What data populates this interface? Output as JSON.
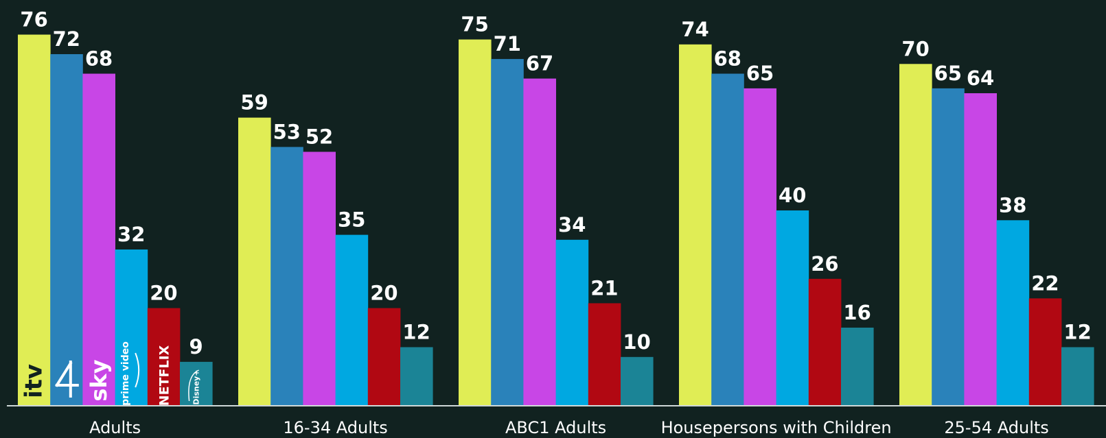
{
  "colors": {
    "background": "#112220",
    "baseline": "#cfd8d8",
    "text": "#ffffff"
  },
  "chart_data": {
    "type": "bar",
    "title": "",
    "xlabel": "",
    "ylabel": "",
    "ylim": [
      0,
      80
    ],
    "grid": false,
    "legend": "inside-first-group-as-logos",
    "categories": [
      "Adults",
      "16-34 Adults",
      "ABC1 Adults",
      "Housepersons with Children",
      "25-54 Adults"
    ],
    "series": [
      {
        "name": "ITV",
        "logo_icon": "itv-logo-icon",
        "color": "#e0ed55",
        "values": [
          76,
          59,
          75,
          74,
          70
        ]
      },
      {
        "name": "Channel 4",
        "logo_icon": "channel4-logo-icon",
        "color": "#2a82ba",
        "values": [
          72,
          53,
          71,
          68,
          65
        ]
      },
      {
        "name": "Sky",
        "logo_icon": "sky-logo-icon",
        "color": "#c846e6",
        "values": [
          68,
          52,
          67,
          65,
          64
        ]
      },
      {
        "name": "prime video",
        "logo_icon": "prime-video-logo-icon",
        "color": "#00a8e1",
        "values": [
          32,
          35,
          34,
          40,
          38
        ]
      },
      {
        "name": "NETFLIX",
        "logo_icon": "netflix-logo-icon",
        "color": "#b10812",
        "values": [
          20,
          20,
          21,
          26,
          22
        ]
      },
      {
        "name": "Disney+",
        "logo_icon": "disney-plus-logo-icon",
        "color": "#1b8496",
        "values": [
          9,
          12,
          10,
          16,
          12
        ]
      }
    ]
  }
}
